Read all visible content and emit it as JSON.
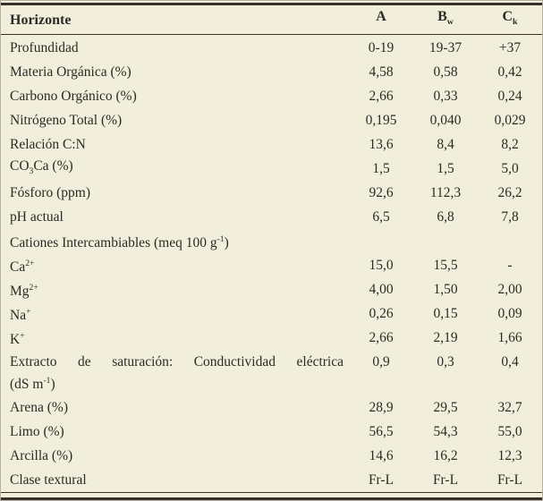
{
  "theme": {
    "background": "#f1efdc",
    "text_color": "#2d2a23",
    "rule_color": "#35312a",
    "outer_border_color": "#b6b3a2"
  },
  "table": {
    "header": {
      "label": "Horizonte",
      "columns": [
        {
          "id": "A",
          "text": "A",
          "sub": ""
        },
        {
          "id": "Bw",
          "text": "B",
          "sub": "w"
        },
        {
          "id": "Ck",
          "text": "C",
          "sub": "k"
        }
      ]
    },
    "rows": [
      {
        "name": "profundidad",
        "label": [
          [
            {
              "t": "Profundidad"
            }
          ]
        ],
        "values": [
          "0-19",
          "19-37",
          "+37"
        ]
      },
      {
        "name": "materia-organica",
        "label": [
          [
            {
              "t": "Materia Orgánica (%)"
            }
          ]
        ],
        "values": [
          "4,58",
          "0,58",
          "0,42"
        ]
      },
      {
        "name": "carbono-organico",
        "label": [
          [
            {
              "t": "Carbono Orgánico (%)"
            }
          ]
        ],
        "values": [
          "2,66",
          "0,33",
          "0,24"
        ]
      },
      {
        "name": "nitrogeno-total",
        "label": [
          [
            {
              "t": "Nitrógeno Total (%)"
            }
          ]
        ],
        "values": [
          "0,195",
          "0,040",
          "0,029"
        ]
      },
      {
        "name": "relacion-cn",
        "label": [
          [
            {
              "t": "Relación C:N"
            }
          ]
        ],
        "values": [
          "13,6",
          "8,4",
          "8,2"
        ]
      },
      {
        "name": "co3ca",
        "label": [
          [
            {
              "t": "CO"
            },
            {
              "t": "3",
              "m": "sub"
            },
            {
              "t": "Ca (%)"
            }
          ]
        ],
        "values": [
          "1,5",
          "1,5",
          "5,0"
        ]
      },
      {
        "name": "fosforo",
        "label": [
          [
            {
              "t": "Fósforo (ppm)"
            }
          ]
        ],
        "values": [
          "92,6",
          "112,3",
          "26,2"
        ]
      },
      {
        "name": "ph-actual",
        "label": [
          [
            {
              "t": "pH actual"
            }
          ]
        ],
        "values": [
          "6,5",
          "6,8",
          "7,8"
        ]
      },
      {
        "name": "cationes-intercambiables",
        "section": true,
        "label": [
          [
            {
              "t": "Cationes Intercambiables (meq 100 g"
            },
            {
              "t": "-1",
              "m": "sup"
            },
            {
              "t": ")"
            }
          ]
        ],
        "values": [
          "",
          "",
          ""
        ]
      },
      {
        "name": "ca",
        "label": [
          [
            {
              "t": "Ca"
            },
            {
              "t": "2+",
              "m": "sup"
            }
          ]
        ],
        "values": [
          "15,0",
          "15,5",
          "-"
        ]
      },
      {
        "name": "mg",
        "label": [
          [
            {
              "t": "Mg"
            },
            {
              "t": "2+",
              "m": "sup"
            }
          ]
        ],
        "values": [
          "4,00",
          "1,50",
          "2,00"
        ]
      },
      {
        "name": "na",
        "label": [
          [
            {
              "t": "Na"
            },
            {
              "t": "+",
              "m": "sup"
            }
          ]
        ],
        "values": [
          "0,26",
          "0,15",
          "0,09"
        ]
      },
      {
        "name": "k",
        "label": [
          [
            {
              "t": "K"
            },
            {
              "t": "+",
              "m": "sup"
            }
          ]
        ],
        "values": [
          "2,66",
          "2,19",
          "1,66"
        ]
      },
      {
        "name": "extracto-saturacion",
        "twoline": true,
        "justify": true,
        "label": [
          [
            {
              "t": "Extracto de saturación: Conductividad eléctrica"
            }
          ],
          [
            {
              "t": "(dS m"
            },
            {
              "t": "-1",
              "m": "sup"
            },
            {
              "t": ")"
            }
          ]
        ],
        "values": [
          "0,9",
          "0,3",
          "0,4"
        ]
      },
      {
        "name": "arena",
        "label": [
          [
            {
              "t": "Arena (%)"
            }
          ]
        ],
        "values": [
          "28,9",
          "29,5",
          "32,7"
        ]
      },
      {
        "name": "limo",
        "label": [
          [
            {
              "t": "Limo (%)"
            }
          ]
        ],
        "values": [
          "56,5",
          "54,3",
          "55,0"
        ]
      },
      {
        "name": "arcilla",
        "label": [
          [
            {
              "t": "Arcilla (%)"
            }
          ]
        ],
        "values": [
          "14,6",
          "16,2",
          "12,3"
        ]
      },
      {
        "name": "clase-textural",
        "label": [
          [
            {
              "t": "Clase textural"
            }
          ]
        ],
        "values": [
          "Fr-L",
          "Fr-L",
          "Fr-L"
        ]
      }
    ]
  }
}
